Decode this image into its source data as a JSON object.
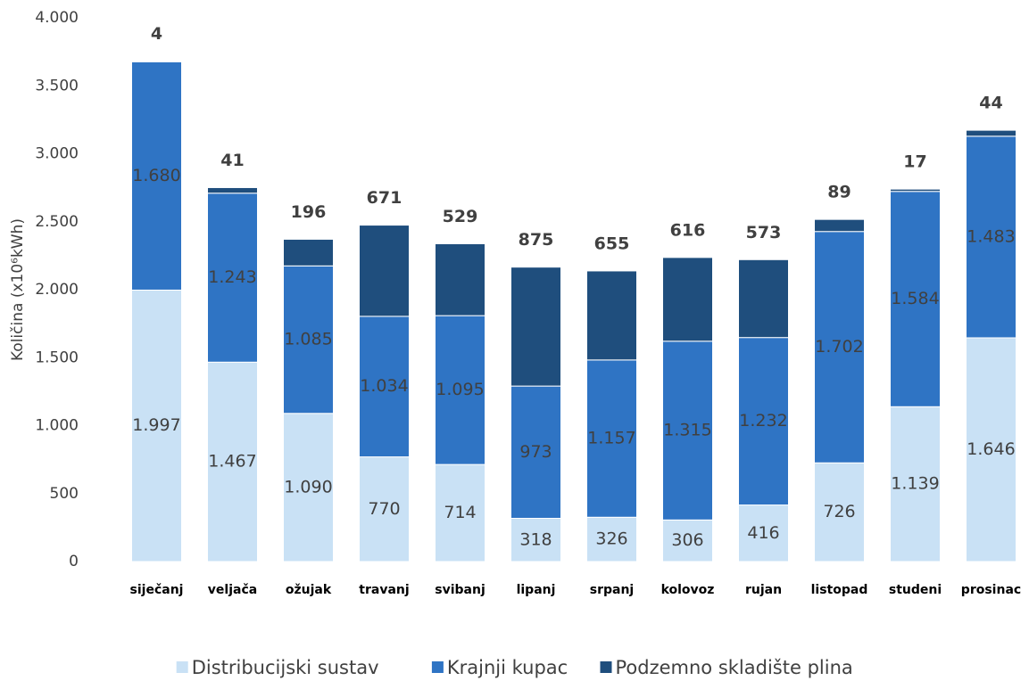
{
  "chart_data": {
    "type": "bar",
    "stacked": true,
    "y_label": "Količina (x10⁶kWh)",
    "categories": [
      "siječanj",
      "veljača",
      "ožujak",
      "travanj",
      "svibanj",
      "lipanj",
      "srpanj",
      "kolovoz",
      "rujan",
      "listopad",
      "studeni",
      "prosinac"
    ],
    "series": [
      {
        "name": "Distribucijski sustav",
        "color": "#c9e1f5",
        "values": [
          1997,
          1467,
          1090,
          770,
          714,
          318,
          326,
          306,
          416,
          726,
          1139,
          1646
        ],
        "value_labels": [
          "1.997",
          "1.467",
          "1.090",
          "770",
          "714",
          "318",
          "326",
          "306",
          "416",
          "726",
          "1.139",
          "1.646"
        ]
      },
      {
        "name": "Krajnji kupac",
        "color": "#2f74c4",
        "values": [
          1680,
          1243,
          1085,
          1034,
          1095,
          973,
          1157,
          1315,
          1232,
          1702,
          1584,
          1483
        ],
        "value_labels": [
          "1.680",
          "1.243",
          "1.085",
          "1.034",
          "1.095",
          "973",
          "1.157",
          "1.315",
          "1.232",
          "1.702",
          "1.584",
          "1.483"
        ]
      },
      {
        "name": "Podzemno skladište plina",
        "color": "#1f4e7d",
        "values": [
          4,
          41,
          196,
          671,
          529,
          875,
          655,
          616,
          573,
          89,
          17,
          44
        ],
        "value_labels": [
          "4",
          "41",
          "196",
          "671",
          "529",
          "875",
          "655",
          "616",
          "573",
          "89",
          "17",
          "44"
        ]
      }
    ],
    "ylim": [
      0,
      4000
    ],
    "yticks": [
      0,
      500,
      {
        "value": 1000,
        "label": "1.000"
      },
      {
        "value": 1500,
        "label": "1.500"
      },
      {
        "value": 2000,
        "label": "2.000"
      },
      {
        "value": 2500,
        "label": "2.500"
      },
      {
        "value": 3000,
        "label": "3.000"
      },
      {
        "value": 3500,
        "label": "3.500"
      },
      {
        "value": 4000,
        "label": "4.000"
      }
    ],
    "grid": false,
    "legend": "bottom"
  }
}
